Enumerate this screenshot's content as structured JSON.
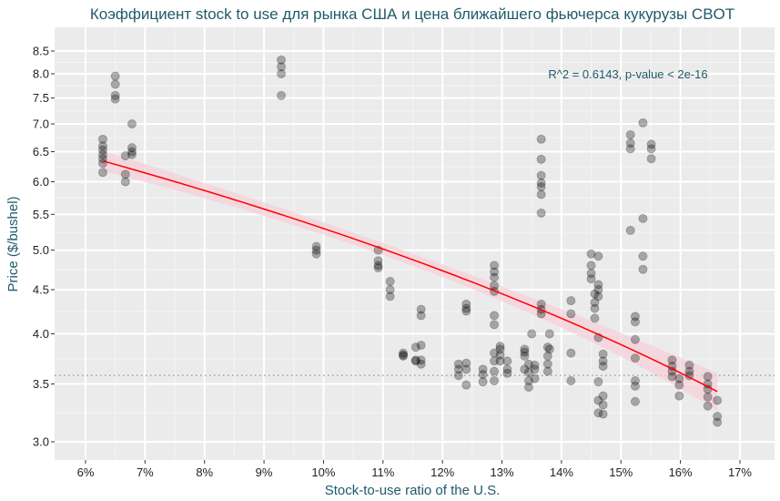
{
  "chart_data": {
    "type": "scatter",
    "title": "Коэффициент stock to use для рынка США и цена ближайшего фьючерса кукурузы CBOT",
    "xlabel": "Stock-to-use ratio of the U.S.",
    "ylabel": "Price ($/bushel)",
    "y_scale": "log",
    "xlim": [
      5.5,
      17.6
    ],
    "ylim": [
      2.83,
      8.85
    ],
    "x_ticks": [
      6,
      7,
      8,
      9,
      10,
      11,
      12,
      13,
      14,
      15,
      16,
      17
    ],
    "x_tick_labels": [
      "6%",
      "7%",
      "8%",
      "9%",
      "10%",
      "11%",
      "12%",
      "13%",
      "14%",
      "15%",
      "16%",
      "17%"
    ],
    "y_ticks": [
      3.0,
      3.5,
      4.0,
      4.5,
      5.0,
      5.5,
      6.0,
      6.5,
      7.0,
      7.5,
      8.0,
      8.5
    ],
    "y_tick_labels": [
      "3.0",
      "3.5",
      "4.0",
      "4.5",
      "5.0",
      "5.5",
      "6.0",
      "6.5",
      "7.0",
      "7.5",
      "8.0",
      "8.5"
    ],
    "grid": true,
    "annotation": "R^2 = 0.6143, p-value < 2e-16",
    "reference_line": {
      "type": "hline",
      "style": "dotted",
      "y": 3.58
    },
    "fit": {
      "type": "linear",
      "x_range": [
        6.3,
        16.62
      ],
      "y_start": 6.34,
      "y_end": 3.43,
      "ci_start": 0.17,
      "ci_mid": 0.08,
      "ci_end": 0.17,
      "color": "#ff0000",
      "band_color": "#f7cfd8"
    },
    "points": [
      [
        6.29,
        6.72
      ],
      [
        6.29,
        6.6
      ],
      [
        6.29,
        6.53
      ],
      [
        6.29,
        6.45
      ],
      [
        6.29,
        6.38
      ],
      [
        6.29,
        6.3
      ],
      [
        6.29,
        6.15
      ],
      [
        6.5,
        7.95
      ],
      [
        6.5,
        7.78
      ],
      [
        6.5,
        7.55
      ],
      [
        6.5,
        7.48
      ],
      [
        6.67,
        6.43
      ],
      [
        6.67,
        6.12
      ],
      [
        6.67,
        6.0
      ],
      [
        6.78,
        7.0
      ],
      [
        6.78,
        6.57
      ],
      [
        6.78,
        6.5
      ],
      [
        6.78,
        6.45
      ],
      [
        9.29,
        8.3
      ],
      [
        9.29,
        8.15
      ],
      [
        9.29,
        8.0
      ],
      [
        9.29,
        7.55
      ],
      [
        9.88,
        5.05
      ],
      [
        9.88,
        5.0
      ],
      [
        9.88,
        4.95
      ],
      [
        10.92,
        5.0
      ],
      [
        10.92,
        4.86
      ],
      [
        10.92,
        4.8
      ],
      [
        10.92,
        4.77
      ],
      [
        11.12,
        4.6
      ],
      [
        11.12,
        4.5
      ],
      [
        11.12,
        4.42
      ],
      [
        11.34,
        3.8
      ],
      [
        11.34,
        3.78
      ],
      [
        11.34,
        3.77
      ],
      [
        11.55,
        3.86
      ],
      [
        11.55,
        3.73
      ],
      [
        11.55,
        3.72
      ],
      [
        11.64,
        4.27
      ],
      [
        11.64,
        4.2
      ],
      [
        11.64,
        3.88
      ],
      [
        11.64,
        3.73
      ],
      [
        11.64,
        3.69
      ],
      [
        12.27,
        3.69
      ],
      [
        12.27,
        3.64
      ],
      [
        12.27,
        3.58
      ],
      [
        12.4,
        4.33
      ],
      [
        12.4,
        4.28
      ],
      [
        12.4,
        4.25
      ],
      [
        12.4,
        3.7
      ],
      [
        12.4,
        3.64
      ],
      [
        12.4,
        3.49
      ],
      [
        12.68,
        3.64
      ],
      [
        12.68,
        3.59
      ],
      [
        12.68,
        3.52
      ],
      [
        12.87,
        4.8
      ],
      [
        12.87,
        4.72
      ],
      [
        12.87,
        4.65
      ],
      [
        12.87,
        4.55
      ],
      [
        12.87,
        4.48
      ],
      [
        12.87,
        4.2
      ],
      [
        12.87,
        4.1
      ],
      [
        12.87,
        3.8
      ],
      [
        12.87,
        3.72
      ],
      [
        12.87,
        3.62
      ],
      [
        12.87,
        3.53
      ],
      [
        12.97,
        3.87
      ],
      [
        12.97,
        3.84
      ],
      [
        12.97,
        3.78
      ],
      [
        12.97,
        3.72
      ],
      [
        13.09,
        3.72
      ],
      [
        13.09,
        3.64
      ],
      [
        13.09,
        3.6
      ],
      [
        13.38,
        3.84
      ],
      [
        13.38,
        3.81
      ],
      [
        13.38,
        3.77
      ],
      [
        13.38,
        3.64
      ],
      [
        13.45,
        3.69
      ],
      [
        13.45,
        3.61
      ],
      [
        13.45,
        3.53
      ],
      [
        13.45,
        3.47
      ],
      [
        13.5,
        4.0
      ],
      [
        13.55,
        3.68
      ],
      [
        13.55,
        3.64
      ],
      [
        13.55,
        3.55
      ],
      [
        13.66,
        6.72
      ],
      [
        13.66,
        6.37
      ],
      [
        13.66,
        6.1
      ],
      [
        13.66,
        5.98
      ],
      [
        13.66,
        5.92
      ],
      [
        13.66,
        5.8
      ],
      [
        13.66,
        5.52
      ],
      [
        13.66,
        4.33
      ],
      [
        13.66,
        4.27
      ],
      [
        13.66,
        4.22
      ],
      [
        13.77,
        3.86
      ],
      [
        13.77,
        3.77
      ],
      [
        13.77,
        3.69
      ],
      [
        13.77,
        3.62
      ],
      [
        13.8,
        4.0
      ],
      [
        13.8,
        3.84
      ],
      [
        14.16,
        4.37
      ],
      [
        14.16,
        4.22
      ],
      [
        14.16,
        3.8
      ],
      [
        14.16,
        3.53
      ],
      [
        14.5,
        4.95
      ],
      [
        14.5,
        4.8
      ],
      [
        14.5,
        4.7
      ],
      [
        14.5,
        4.63
      ],
      [
        14.56,
        4.45
      ],
      [
        14.56,
        4.35
      ],
      [
        14.56,
        4.28
      ],
      [
        14.56,
        4.17
      ],
      [
        14.62,
        4.92
      ],
      [
        14.62,
        4.56
      ],
      [
        14.62,
        4.5
      ],
      [
        14.62,
        4.42
      ],
      [
        14.62,
        3.96
      ],
      [
        14.62,
        3.52
      ],
      [
        14.62,
        3.35
      ],
      [
        14.62,
        3.24
      ],
      [
        14.7,
        3.79
      ],
      [
        14.7,
        3.72
      ],
      [
        14.7,
        3.67
      ],
      [
        14.7,
        3.39
      ],
      [
        14.7,
        3.31
      ],
      [
        14.7,
        3.23
      ],
      [
        15.16,
        6.8
      ],
      [
        15.16,
        6.65
      ],
      [
        15.16,
        6.55
      ],
      [
        15.16,
        5.27
      ],
      [
        15.24,
        4.19
      ],
      [
        15.24,
        4.13
      ],
      [
        15.24,
        3.94
      ],
      [
        15.24,
        3.75
      ],
      [
        15.24,
        3.53
      ],
      [
        15.24,
        3.48
      ],
      [
        15.24,
        3.34
      ],
      [
        15.37,
        7.02
      ],
      [
        15.37,
        5.44
      ],
      [
        15.37,
        4.92
      ],
      [
        15.37,
        4.75
      ],
      [
        15.51,
        6.63
      ],
      [
        15.51,
        6.55
      ],
      [
        15.51,
        6.38
      ],
      [
        15.86,
        3.73
      ],
      [
        15.86,
        3.67
      ],
      [
        15.86,
        3.62
      ],
      [
        15.86,
        3.57
      ],
      [
        15.98,
        3.55
      ],
      [
        15.98,
        3.49
      ],
      [
        15.98,
        3.39
      ],
      [
        16.15,
        3.68
      ],
      [
        16.15,
        3.62
      ],
      [
        16.15,
        3.58
      ],
      [
        16.46,
        3.57
      ],
      [
        16.46,
        3.5
      ],
      [
        16.46,
        3.45
      ],
      [
        16.46,
        3.38
      ],
      [
        16.46,
        3.3
      ],
      [
        16.62,
        3.35
      ],
      [
        16.62,
        3.21
      ],
      [
        16.62,
        3.16
      ]
    ]
  }
}
